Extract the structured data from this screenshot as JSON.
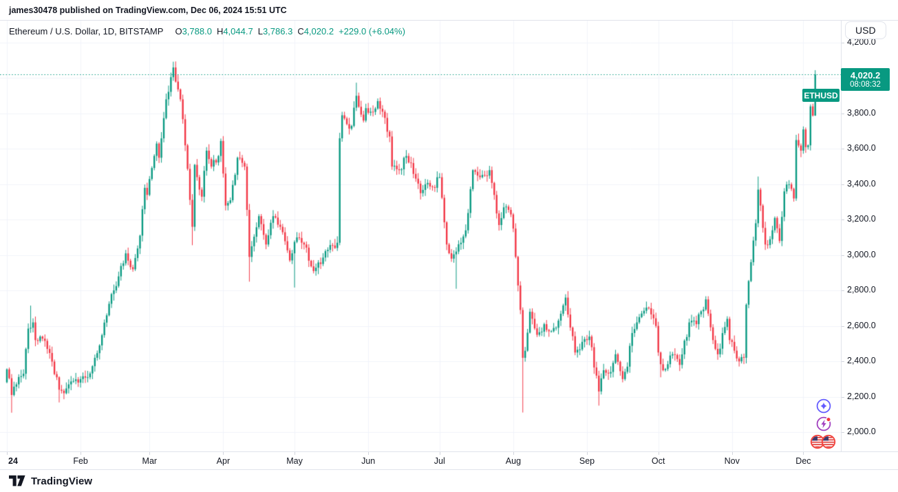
{
  "publisher_bar": {
    "text": "james30478 published on TradingView.com, Dec 06, 2024 15:51 UTC"
  },
  "legend": {
    "title": "Ethereum / U.S. Dollar, 1D, BITSTAMP",
    "o_label": "O",
    "o": "3,788.0",
    "h_label": "H",
    "h": "4,044.7",
    "l_label": "L",
    "l": "3,786.3",
    "c_label": "C",
    "c": "4,020.2",
    "change": "+229.0 (+6.04%)"
  },
  "currency_button": {
    "label": "USD"
  },
  "price_label": {
    "symbol": "ETHUSD",
    "price": "4,020.2",
    "countdown": "08:08:32"
  },
  "footer": {
    "brand": "TradingView"
  },
  "icons": [
    "tradingview-logo-icon",
    "ai-sparkle-icon",
    "lightning-bolt-icon",
    "us-flags-icon"
  ],
  "colors": {
    "up": "#089981",
    "down": "#F23645",
    "accent": "#089981",
    "text": "#131722",
    "grid": "#F0F3FA",
    "border": "#E0E3EB",
    "sparkle": "#635BFF",
    "bolt": "#A13FBF",
    "flag_ring": "#F2413B",
    "flag_stripe": "#E0403C",
    "flag_canton": "#3C3B6E",
    "dot": "#F5353F"
  },
  "axis": {
    "price_ticks": [
      {
        "value": 4200,
        "label": "4,200.0"
      },
      {
        "value": 4000,
        "label": "4,000.0"
      },
      {
        "value": 3800,
        "label": "3,800.0"
      },
      {
        "value": 3600,
        "label": "3,600.0"
      },
      {
        "value": 3400,
        "label": "3,400.0"
      },
      {
        "value": 3200,
        "label": "3,200.0"
      },
      {
        "value": 3000,
        "label": "3,000.0"
      },
      {
        "value": 2800,
        "label": "2,800.0"
      },
      {
        "value": 2600,
        "label": "2,600.0"
      },
      {
        "value": 2400,
        "label": "2,400.0"
      },
      {
        "value": 2200,
        "label": "2,200.0"
      },
      {
        "value": 2000,
        "label": "2,000.0"
      }
    ],
    "time_labels": [
      {
        "label": "24",
        "day": 0,
        "year": true
      },
      {
        "label": "Feb",
        "day": 31
      },
      {
        "label": "Mar",
        "day": 60
      },
      {
        "label": "Apr",
        "day": 91
      },
      {
        "label": "May",
        "day": 121
      },
      {
        "label": "Jun",
        "day": 152
      },
      {
        "label": "Jul",
        "day": 182
      },
      {
        "label": "Aug",
        "day": 213
      },
      {
        "label": "Sep",
        "day": 244
      },
      {
        "label": "Oct",
        "day": 274
      },
      {
        "label": "Nov",
        "day": 305
      },
      {
        "label": "Dec",
        "day": 335
      }
    ]
  },
  "chart_data": {
    "type": "candlestick",
    "symbol": "ETHUSD",
    "exchange": "BITSTAMP",
    "timeframe": "1D",
    "title": "Ethereum / U.S. Dollar",
    "current_price": 4020.2,
    "last_candle": {
      "open": 3788.0,
      "high": 4044.7,
      "low": 3786.3,
      "close": 4020.2
    },
    "price_axis_range": [
      2000,
      4200
    ],
    "grid": true,
    "days_total": 341,
    "first_open": 2282,
    "keyframes": [
      [
        0,
        2355
      ],
      [
        2,
        2210
      ],
      [
        4,
        2270
      ],
      [
        7,
        2330
      ],
      [
        9,
        2585
      ],
      [
        11,
        2620
      ],
      [
        12,
        2520
      ],
      [
        14,
        2540
      ],
      [
        17,
        2470
      ],
      [
        21,
        2310
      ],
      [
        22,
        2240
      ],
      [
        24,
        2220
      ],
      [
        26,
        2270
      ],
      [
        30,
        2280
      ],
      [
        31,
        2300
      ],
      [
        34,
        2310
      ],
      [
        37,
        2420
      ],
      [
        39,
        2490
      ],
      [
        42,
        2660
      ],
      [
        44,
        2780
      ],
      [
        47,
        2880
      ],
      [
        50,
        3010
      ],
      [
        53,
        2920
      ],
      [
        56,
        3110
      ],
      [
        58,
        3380
      ],
      [
        59,
        3340
      ],
      [
        60,
        3430
      ],
      [
        63,
        3630
      ],
      [
        64,
        3550
      ],
      [
        67,
        3880
      ],
      [
        70,
        4060
      ],
      [
        71,
        3980
      ],
      [
        73,
        3880
      ],
      [
        75,
        3620
      ],
      [
        78,
        3160
      ],
      [
        79,
        3510
      ],
      [
        82,
        3330
      ],
      [
        84,
        3590
      ],
      [
        86,
        3500
      ],
      [
        89,
        3560
      ],
      [
        90,
        3645
      ],
      [
        92,
        3280
      ],
      [
        94,
        3310
      ],
      [
        97,
        3550
      ],
      [
        100,
        3500
      ],
      [
        102,
        2990
      ],
      [
        103,
        3050
      ],
      [
        106,
        3220
      ],
      [
        109,
        3060
      ],
      [
        112,
        3220
      ],
      [
        115,
        3160
      ],
      [
        119,
        2970
      ],
      [
        120,
        3010
      ],
      [
        122,
        3100
      ],
      [
        125,
        3060
      ],
      [
        129,
        2910
      ],
      [
        132,
        2950
      ],
      [
        135,
        3030
      ],
      [
        139,
        3070
      ],
      [
        140,
        3660
      ],
      [
        141,
        3790
      ],
      [
        143,
        3740
      ],
      [
        145,
        3730
      ],
      [
        147,
        3900
      ],
      [
        150,
        3760
      ],
      [
        151,
        3830
      ],
      [
        153,
        3810
      ],
      [
        156,
        3870
      ],
      [
        158,
        3810
      ],
      [
        161,
        3670
      ],
      [
        162,
        3500
      ],
      [
        165,
        3480
      ],
      [
        168,
        3560
      ],
      [
        170,
        3520
      ],
      [
        174,
        3350
      ],
      [
        176,
        3400
      ],
      [
        180,
        3380
      ],
      [
        181,
        3440
      ],
      [
        182,
        3440
      ],
      [
        185,
        3060
      ],
      [
        187,
        2980
      ],
      [
        189,
        3020
      ],
      [
        193,
        3140
      ],
      [
        196,
        3480
      ],
      [
        199,
        3440
      ],
      [
        203,
        3480
      ],
      [
        205,
        3340
      ],
      [
        207,
        3170
      ],
      [
        209,
        3270
      ],
      [
        212,
        3230
      ],
      [
        213,
        3150
      ],
      [
        214,
        2990
      ],
      [
        216,
        2690
      ],
      [
        217,
        2420
      ],
      [
        218,
        2460
      ],
      [
        220,
        2680
      ],
      [
        223,
        2550
      ],
      [
        226,
        2610
      ],
      [
        229,
        2570
      ],
      [
        232,
        2630
      ],
      [
        235,
        2760
      ],
      [
        239,
        2450
      ],
      [
        242,
        2510
      ],
      [
        245,
        2540
      ],
      [
        249,
        2230
      ],
      [
        251,
        2350
      ],
      [
        254,
        2340
      ],
      [
        256,
        2440
      ],
      [
        259,
        2300
      ],
      [
        261,
        2370
      ],
      [
        263,
        2560
      ],
      [
        266,
        2650
      ],
      [
        270,
        2700
      ],
      [
        273,
        2600
      ],
      [
        274,
        2450
      ],
      [
        276,
        2350
      ],
      [
        280,
        2440
      ],
      [
        283,
        2380
      ],
      [
        287,
        2620
      ],
      [
        290,
        2610
      ],
      [
        294,
        2750
      ],
      [
        295,
        2670
      ],
      [
        297,
        2520
      ],
      [
        299,
        2440
      ],
      [
        303,
        2640
      ],
      [
        304,
        2520
      ],
      [
        305,
        2510
      ],
      [
        308,
        2400
      ],
      [
        310,
        2420
      ],
      [
        311,
        2720
      ],
      [
        313,
        2960
      ],
      [
        315,
        3180
      ],
      [
        316,
        3370
      ],
      [
        317,
        3280
      ],
      [
        319,
        3060
      ],
      [
        321,
        3090
      ],
      [
        323,
        3210
      ],
      [
        325,
        3080
      ],
      [
        327,
        3360
      ],
      [
        329,
        3400
      ],
      [
        331,
        3320
      ],
      [
        332,
        3650
      ],
      [
        334,
        3590
      ],
      [
        335,
        3710
      ],
      [
        336,
        3610
      ],
      [
        337,
        3620
      ],
      [
        338,
        3840
      ],
      [
        339,
        3788
      ],
      [
        340,
        4020.2
      ]
    ],
    "extremes": [
      [
        2,
        "low",
        2110
      ],
      [
        10,
        "high",
        2715
      ],
      [
        22,
        "low",
        2168
      ],
      [
        71,
        "high",
        4094
      ],
      [
        78,
        "low",
        3056
      ],
      [
        102,
        "low",
        2850
      ],
      [
        121,
        "low",
        2817
      ],
      [
        147,
        "high",
        3974
      ],
      [
        156,
        "high",
        3885
      ],
      [
        189,
        "low",
        2810
      ],
      [
        217,
        "low",
        2111
      ],
      [
        249,
        "low",
        2150
      ],
      [
        275,
        "low",
        2310
      ],
      [
        316,
        "high",
        3444
      ],
      [
        340,
        "high",
        4044.7
      ],
      [
        340,
        "low",
        3786.3
      ]
    ]
  }
}
